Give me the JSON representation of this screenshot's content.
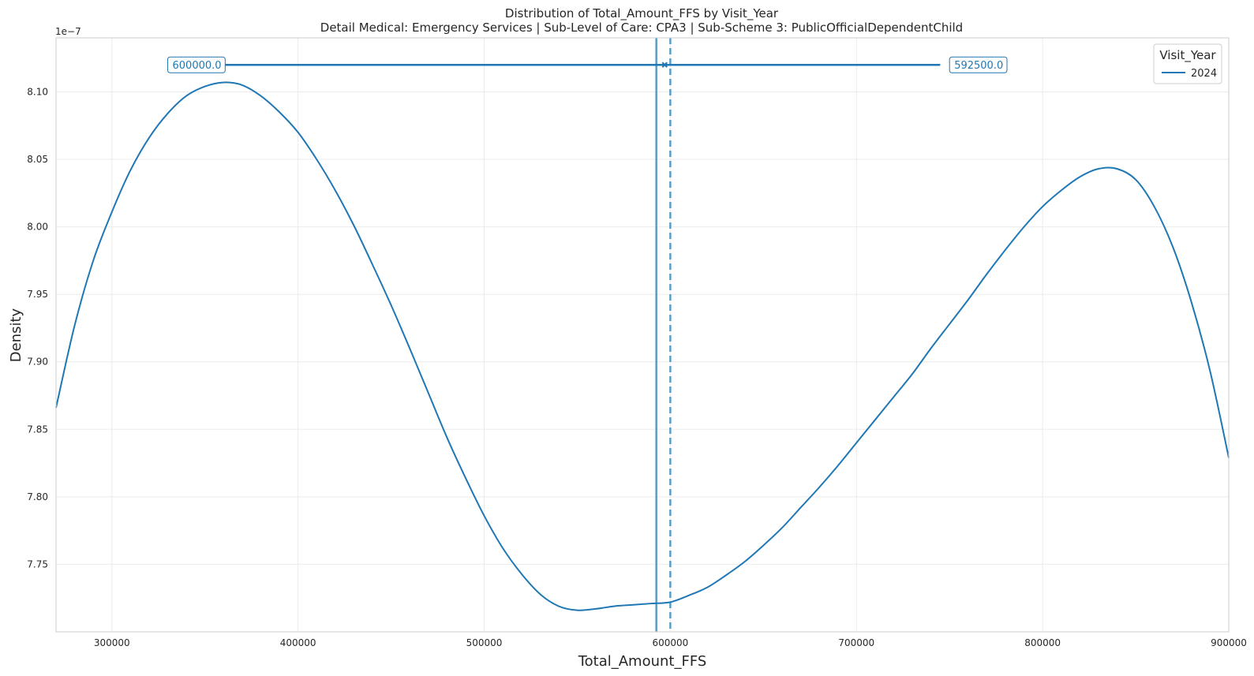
{
  "chart_data": {
    "type": "line",
    "title": "Distribution of Total_Amount_FFS by Visit_Year",
    "subtitle": "Detail Medical: Emergency Services | Sub-Level of Care: CPA3 | Sub-Scheme 3: PublicOfficialDependentChild",
    "xlabel": "Total_Amount_FFS",
    "ylabel": "Density",
    "y_scale_label": "1e−7",
    "xlim": [
      270000,
      900000
    ],
    "ylim": [
      7.7,
      8.14
    ],
    "y_multiplier": 1e-07,
    "x_ticks": [
      300000,
      400000,
      500000,
      600000,
      700000,
      800000,
      900000
    ],
    "x_tick_labels": [
      "300000",
      "400000",
      "500000",
      "600000",
      "700000",
      "800000",
      "900000"
    ],
    "y_ticks": [
      7.75,
      7.8,
      7.85,
      7.9,
      7.95,
      8.0,
      8.05,
      8.1
    ],
    "y_tick_labels": [
      "7.75",
      "7.80",
      "7.85",
      "7.90",
      "7.95",
      "8.00",
      "8.05",
      "8.10"
    ],
    "grid": true,
    "legend": {
      "title": "Visit_Year",
      "placement": "top-right"
    },
    "series": [
      {
        "name": "2024",
        "color": "#1f77b4",
        "x": [
          270000,
          280000,
          290000,
          300000,
          310000,
          320000,
          330000,
          340000,
          350000,
          360000,
          370000,
          380000,
          390000,
          400000,
          410000,
          420000,
          430000,
          440000,
          450000,
          460000,
          470000,
          480000,
          490000,
          500000,
          510000,
          520000,
          530000,
          540000,
          550000,
          560000,
          570000,
          580000,
          590000,
          600000,
          610000,
          620000,
          630000,
          640000,
          650000,
          660000,
          670000,
          680000,
          690000,
          700000,
          710000,
          720000,
          730000,
          740000,
          750000,
          760000,
          770000,
          780000,
          790000,
          800000,
          810000,
          820000,
          830000,
          840000,
          850000,
          860000,
          870000,
          880000,
          890000,
          900000
        ],
        "y": [
          7.866,
          7.927,
          7.975,
          8.011,
          8.042,
          8.066,
          8.084,
          8.097,
          8.104,
          8.107,
          8.105,
          8.097,
          8.085,
          8.07,
          8.05,
          8.027,
          8.001,
          7.972,
          7.942,
          7.91,
          7.877,
          7.844,
          7.814,
          7.786,
          7.762,
          7.743,
          7.728,
          7.719,
          7.716,
          7.717,
          7.719,
          7.72,
          7.721,
          7.722,
          7.727,
          7.733,
          7.742,
          7.752,
          7.764,
          7.777,
          7.792,
          7.807,
          7.823,
          7.84,
          7.857,
          7.874,
          7.891,
          7.91,
          7.928,
          7.946,
          7.965,
          7.983,
          8.0,
          8.015,
          8.027,
          8.037,
          8.043,
          8.043,
          8.035,
          8.015,
          7.985,
          7.944,
          7.893,
          7.829
        ]
      }
    ],
    "reference_lines": [
      {
        "kind": "solid",
        "x": 592500,
        "color": "#5a9ec8"
      },
      {
        "kind": "dashed",
        "x": 600000,
        "color": "#5a9ec8"
      }
    ],
    "range_bar": {
      "x_start": 360000,
      "x_end": 745000,
      "y": 8.12,
      "marker_x": 597000,
      "color": "#1f77b4"
    },
    "annotations": [
      {
        "text": "600000.0",
        "x": 330000,
        "y": 8.12
      },
      {
        "text": "592500.0",
        "x": 750000,
        "y": 8.12
      }
    ]
  }
}
